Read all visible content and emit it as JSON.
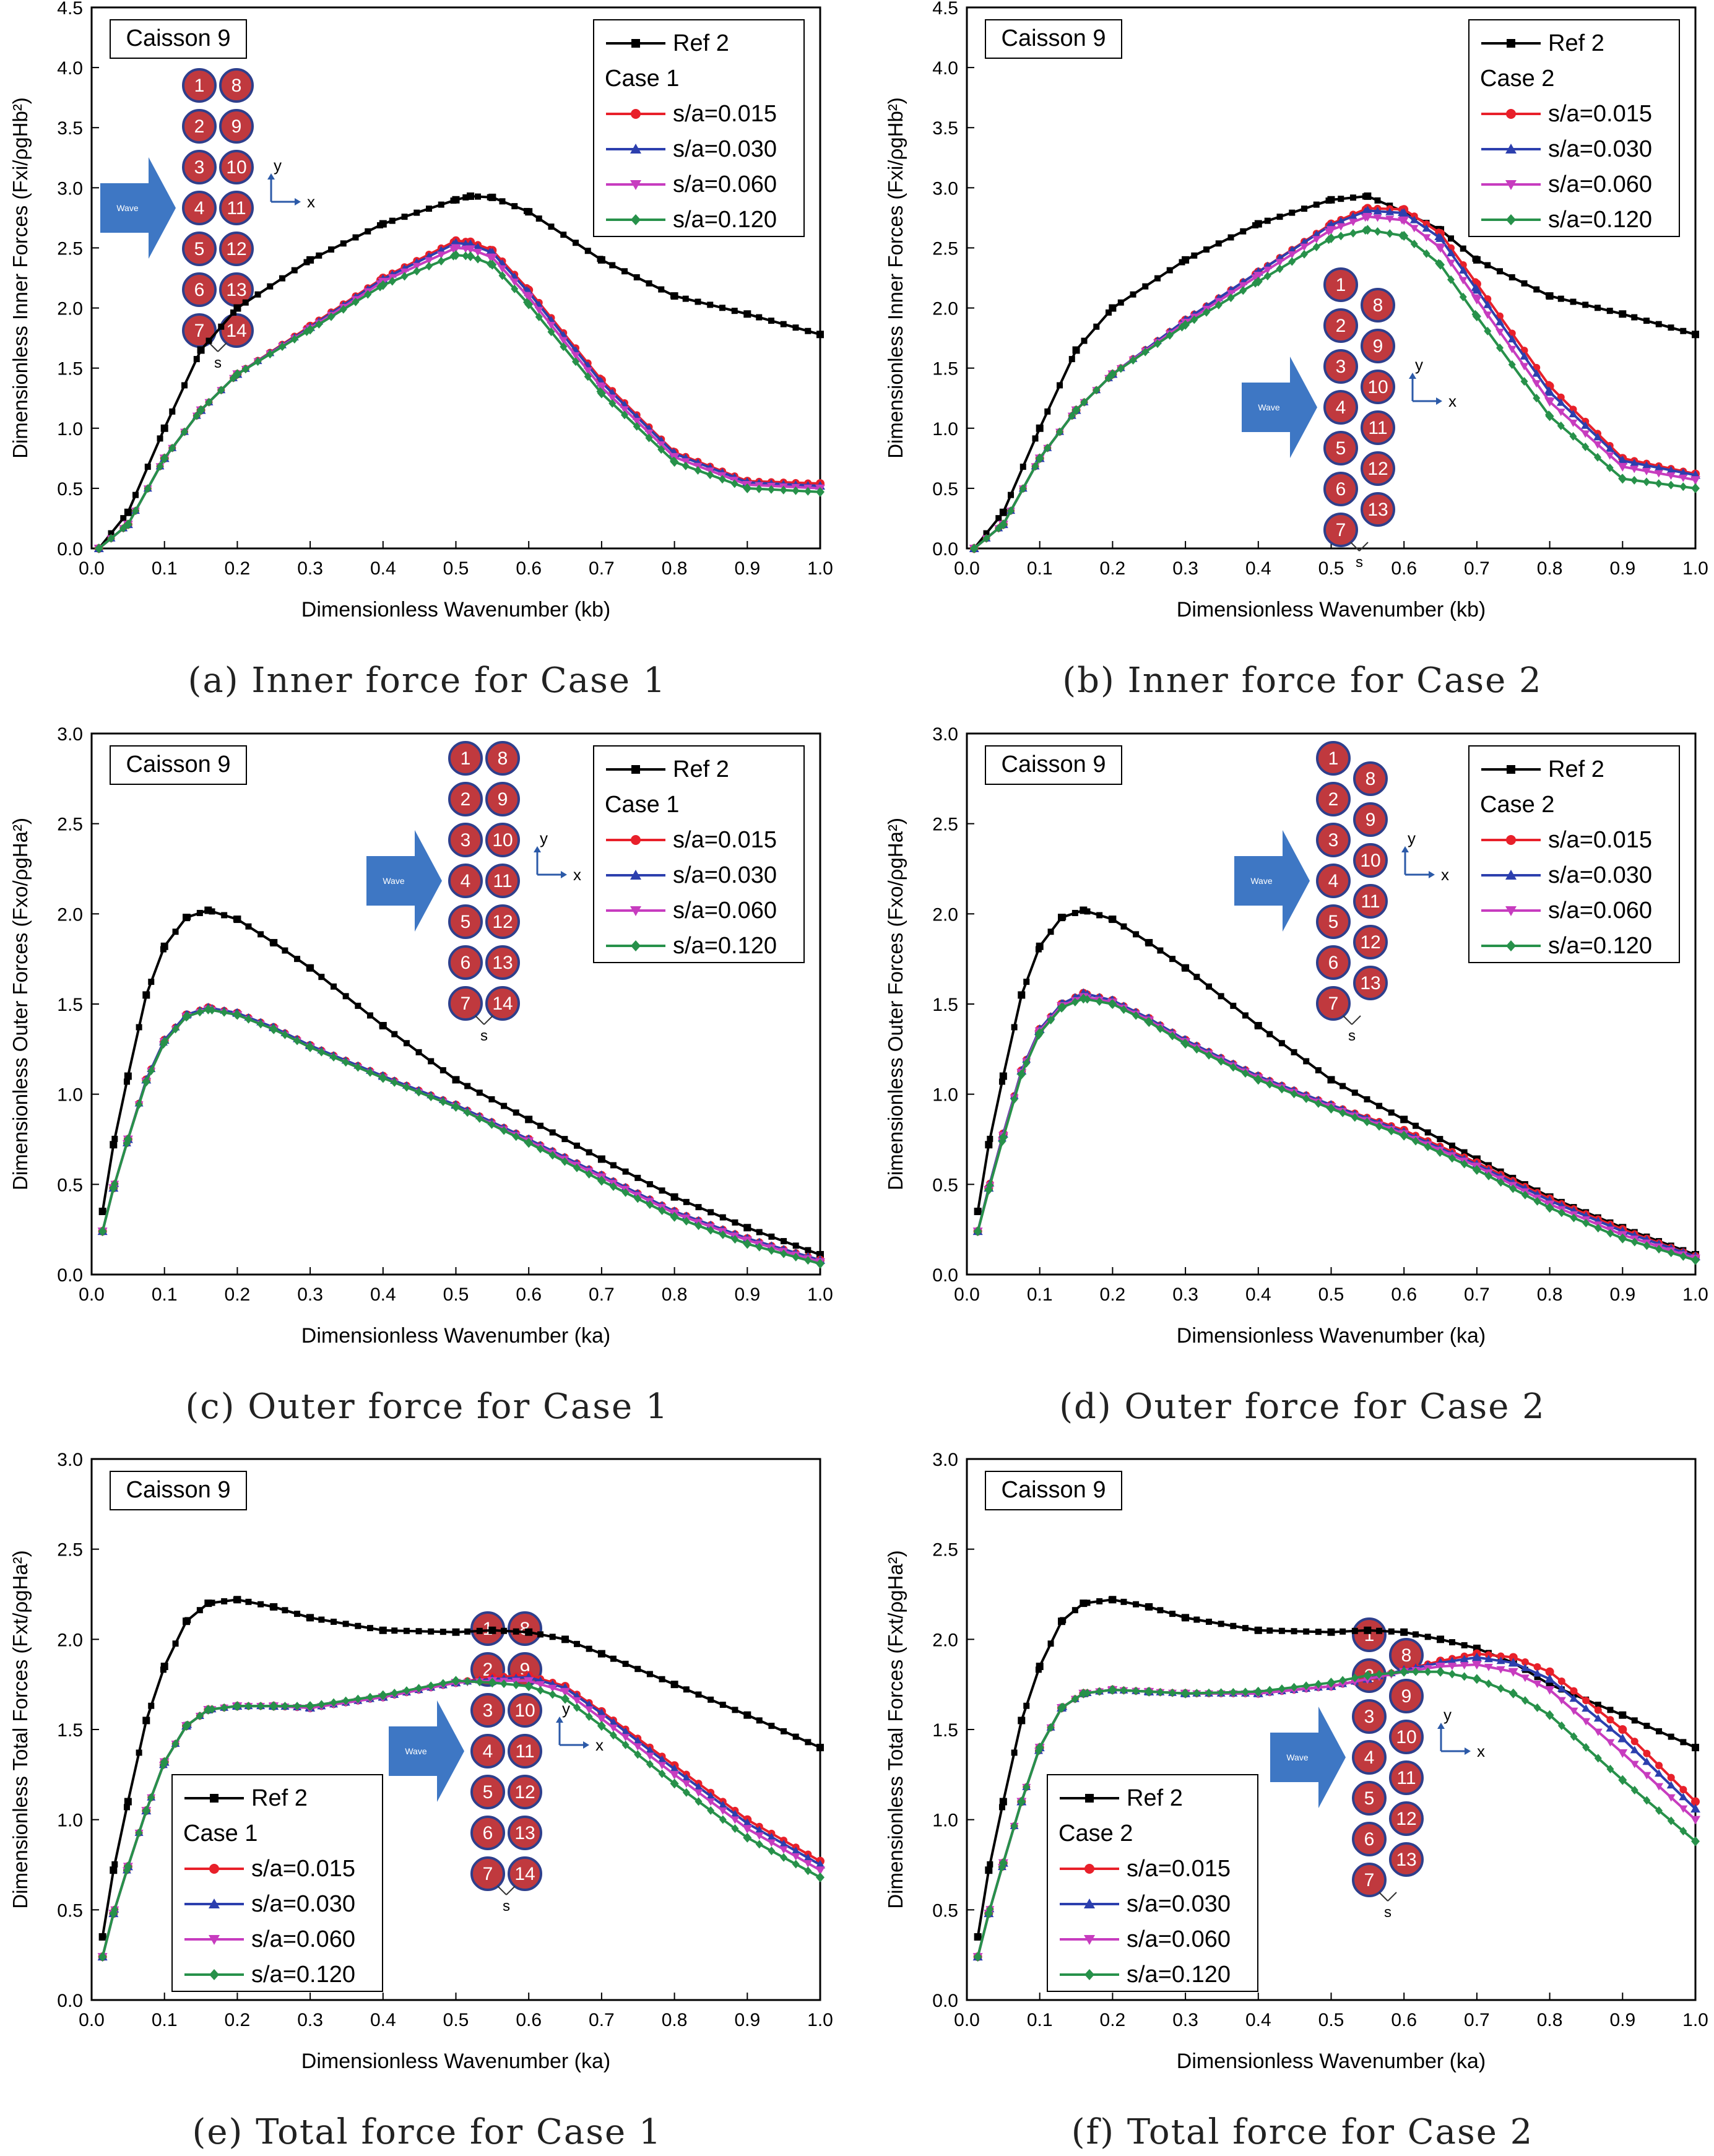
{
  "figure": {
    "series_colors": {
      "Ref 2": "#000000",
      "s/a=0.015": "#e8202a",
      "s/a=0.030": "#2c3fae",
      "s/a=0.060": "#c73cbf",
      "s/a=0.120": "#27914a"
    },
    "circle_fill": "#c0393e",
    "arrow_fill": "#3e77c4",
    "wave_label": "Wave",
    "axis_x_label": "x",
    "axis_y_label": "y",
    "gap_label": "s"
  },
  "chart_data": [
    {
      "id": "a",
      "type": "line",
      "caption": "(a) Inner force for Case 1",
      "title": "Caisson 9",
      "xlabel": "Dimensionless Wavenumber (kb)",
      "ylabel": "Dimensionless Inner Forces (Fxi/ρgHb²)",
      "xlim": [
        0,
        1.0
      ],
      "ylim": [
        0,
        4.5
      ],
      "xticks": [
        0.0,
        0.1,
        0.2,
        0.3,
        0.4,
        0.5,
        0.6,
        0.7,
        0.8,
        0.9,
        1.0
      ],
      "yticks": [
        0.0,
        0.5,
        1.0,
        1.5,
        2.0,
        2.5,
        3.0,
        3.5,
        4.0,
        4.5
      ],
      "legend_position": "top-right",
      "legend_group": "Case 1",
      "inset": "case1",
      "x": [
        0.01,
        0.05,
        0.1,
        0.15,
        0.2,
        0.3,
        0.4,
        0.5,
        0.52,
        0.55,
        0.6,
        0.7,
        0.8,
        0.9,
        1.0
      ],
      "series": [
        {
          "name": "Ref 2",
          "values": [
            0.0,
            0.3,
            1.0,
            1.65,
            2.0,
            2.4,
            2.7,
            2.9,
            2.93,
            2.92,
            2.8,
            2.4,
            2.1,
            1.95,
            1.78
          ]
        },
        {
          "name": "s/a=0.015",
          "values": [
            0.0,
            0.2,
            0.75,
            1.15,
            1.45,
            1.85,
            2.25,
            2.56,
            2.55,
            2.48,
            2.15,
            1.4,
            0.8,
            0.56,
            0.54
          ]
        },
        {
          "name": "s/a=0.030",
          "values": [
            0.0,
            0.2,
            0.75,
            1.15,
            1.45,
            1.84,
            2.24,
            2.54,
            2.53,
            2.46,
            2.13,
            1.38,
            0.79,
            0.55,
            0.52
          ]
        },
        {
          "name": "s/a=0.060",
          "values": [
            0.0,
            0.2,
            0.75,
            1.15,
            1.45,
            1.83,
            2.22,
            2.5,
            2.49,
            2.42,
            2.09,
            1.34,
            0.76,
            0.53,
            0.5
          ]
        },
        {
          "name": "s/a=0.120",
          "values": [
            0.0,
            0.2,
            0.75,
            1.15,
            1.45,
            1.82,
            2.19,
            2.44,
            2.43,
            2.36,
            2.03,
            1.29,
            0.72,
            0.5,
            0.47
          ]
        }
      ]
    },
    {
      "id": "b",
      "type": "line",
      "caption": "(b) Inner force for Case 2",
      "title": "Caisson 9",
      "xlabel": "Dimensionless Wavenumber (kb)",
      "ylabel": "Dimensionless Inner Forces (Fxi/ρgHb²)",
      "xlim": [
        0,
        1.0
      ],
      "ylim": [
        0,
        4.5
      ],
      "xticks": [
        0.0,
        0.1,
        0.2,
        0.3,
        0.4,
        0.5,
        0.6,
        0.7,
        0.8,
        0.9,
        1.0
      ],
      "yticks": [
        0.0,
        0.5,
        1.0,
        1.5,
        2.0,
        2.5,
        3.0,
        3.5,
        4.0,
        4.5
      ],
      "legend_position": "top-right",
      "legend_group": "Case 2",
      "inset": "case2",
      "x": [
        0.01,
        0.05,
        0.1,
        0.15,
        0.2,
        0.3,
        0.4,
        0.5,
        0.55,
        0.6,
        0.65,
        0.7,
        0.8,
        0.9,
        1.0
      ],
      "series": [
        {
          "name": "Ref 2",
          "values": [
            0.0,
            0.3,
            1.0,
            1.65,
            2.0,
            2.4,
            2.7,
            2.9,
            2.93,
            2.8,
            2.65,
            2.4,
            2.1,
            1.95,
            1.78
          ]
        },
        {
          "name": "s/a=0.015",
          "values": [
            0.0,
            0.2,
            0.75,
            1.15,
            1.45,
            1.9,
            2.3,
            2.7,
            2.83,
            2.82,
            2.62,
            2.2,
            1.35,
            0.75,
            0.62
          ]
        },
        {
          "name": "s/a=0.030",
          "values": [
            0.0,
            0.2,
            0.75,
            1.15,
            1.45,
            1.9,
            2.3,
            2.69,
            2.81,
            2.79,
            2.58,
            2.15,
            1.3,
            0.73,
            0.61
          ]
        },
        {
          "name": "s/a=0.060",
          "values": [
            0.0,
            0.2,
            0.75,
            1.15,
            1.45,
            1.88,
            2.27,
            2.65,
            2.76,
            2.73,
            2.5,
            2.07,
            1.22,
            0.68,
            0.57
          ]
        },
        {
          "name": "s/a=0.120",
          "values": [
            0.0,
            0.2,
            0.75,
            1.15,
            1.45,
            1.86,
            2.22,
            2.58,
            2.65,
            2.6,
            2.36,
            1.93,
            1.1,
            0.58,
            0.5
          ]
        }
      ]
    },
    {
      "id": "c",
      "type": "line",
      "caption": "(c) Outer force for Case 1",
      "title": "Caisson 9",
      "xlabel": "Dimensionless Wavenumber (ka)",
      "ylabel": "Dimensionless Outer Forces (Fxo/ρgHa²)",
      "xlim": [
        0,
        1.0
      ],
      "ylim": [
        0,
        3.0
      ],
      "xticks": [
        0.0,
        0.1,
        0.2,
        0.3,
        0.4,
        0.5,
        0.6,
        0.7,
        0.8,
        0.9,
        1.0
      ],
      "yticks": [
        0.0,
        0.5,
        1.0,
        1.5,
        2.0,
        2.5,
        3.0
      ],
      "legend_position": "top-right",
      "legend_group": "Case 1",
      "inset": "case1",
      "x": [
        0.015,
        0.03,
        0.05,
        0.075,
        0.1,
        0.13,
        0.16,
        0.2,
        0.25,
        0.3,
        0.4,
        0.5,
        0.6,
        0.7,
        0.8,
        0.9,
        1.0
      ],
      "series": [
        {
          "name": "Ref 2",
          "values": [
            0.35,
            0.72,
            1.1,
            1.55,
            1.82,
            1.98,
            2.02,
            1.97,
            1.84,
            1.7,
            1.38,
            1.08,
            0.86,
            0.64,
            0.43,
            0.26,
            0.11
          ]
        },
        {
          "name": "s/a=0.015",
          "values": [
            0.24,
            0.48,
            0.75,
            1.08,
            1.3,
            1.44,
            1.48,
            1.45,
            1.37,
            1.27,
            1.1,
            0.94,
            0.75,
            0.55,
            0.35,
            0.2,
            0.08
          ]
        },
        {
          "name": "s/a=0.030",
          "values": [
            0.24,
            0.48,
            0.75,
            1.08,
            1.3,
            1.44,
            1.48,
            1.45,
            1.37,
            1.27,
            1.1,
            0.94,
            0.75,
            0.55,
            0.35,
            0.2,
            0.08
          ]
        },
        {
          "name": "s/a=0.060",
          "values": [
            0.24,
            0.48,
            0.75,
            1.07,
            1.29,
            1.43,
            1.47,
            1.44,
            1.36,
            1.26,
            1.09,
            0.93,
            0.74,
            0.54,
            0.34,
            0.19,
            0.07
          ]
        },
        {
          "name": "s/a=0.120",
          "values": [
            0.24,
            0.48,
            0.75,
            1.07,
            1.29,
            1.43,
            1.47,
            1.44,
            1.36,
            1.26,
            1.09,
            0.93,
            0.73,
            0.52,
            0.32,
            0.17,
            0.06
          ]
        }
      ]
    },
    {
      "id": "d",
      "type": "line",
      "caption": "(d) Outer force for Case 2",
      "title": "Caisson 9",
      "xlabel": "Dimensionless Wavenumber (ka)",
      "ylabel": "Dimensionless Outer Forces (Fxo/ρgHa²)",
      "xlim": [
        0,
        1.0
      ],
      "ylim": [
        0,
        3.0
      ],
      "xticks": [
        0.0,
        0.1,
        0.2,
        0.3,
        0.4,
        0.5,
        0.6,
        0.7,
        0.8,
        0.9,
        1.0
      ],
      "yticks": [
        0.0,
        0.5,
        1.0,
        1.5,
        2.0,
        2.5,
        3.0
      ],
      "legend_position": "top-right",
      "legend_group": "Case 2",
      "inset": "case2",
      "x": [
        0.015,
        0.03,
        0.05,
        0.075,
        0.1,
        0.13,
        0.16,
        0.2,
        0.25,
        0.3,
        0.4,
        0.5,
        0.6,
        0.7,
        0.8,
        0.9,
        1.0
      ],
      "series": [
        {
          "name": "Ref 2",
          "values": [
            0.35,
            0.72,
            1.1,
            1.55,
            1.82,
            1.98,
            2.02,
            1.97,
            1.84,
            1.7,
            1.38,
            1.08,
            0.86,
            0.64,
            0.43,
            0.26,
            0.11
          ]
        },
        {
          "name": "s/a=0.015",
          "values": [
            0.24,
            0.48,
            0.78,
            1.13,
            1.36,
            1.5,
            1.56,
            1.52,
            1.42,
            1.3,
            1.1,
            0.94,
            0.8,
            0.62,
            0.42,
            0.25,
            0.1
          ]
        },
        {
          "name": "s/a=0.030",
          "values": [
            0.24,
            0.48,
            0.78,
            1.13,
            1.36,
            1.5,
            1.56,
            1.52,
            1.42,
            1.3,
            1.1,
            0.94,
            0.79,
            0.61,
            0.41,
            0.24,
            0.1
          ]
        },
        {
          "name": "s/a=0.060",
          "values": [
            0.24,
            0.47,
            0.77,
            1.12,
            1.35,
            1.49,
            1.54,
            1.51,
            1.41,
            1.29,
            1.09,
            0.93,
            0.78,
            0.6,
            0.39,
            0.22,
            0.09
          ]
        },
        {
          "name": "s/a=0.120",
          "values": [
            0.24,
            0.47,
            0.76,
            1.11,
            1.34,
            1.48,
            1.53,
            1.5,
            1.4,
            1.28,
            1.08,
            0.92,
            0.77,
            0.58,
            0.37,
            0.2,
            0.08
          ]
        }
      ]
    },
    {
      "id": "e",
      "type": "line",
      "caption": "(e) Total force for Case 1",
      "title": "Caisson 9",
      "xlabel": "Dimensionless Wavenumber (ka)",
      "ylabel": "Dimensionless Total Forces (Fxt/ρgHa²)",
      "xlim": [
        0,
        1.0
      ],
      "ylim": [
        0,
        3.0
      ],
      "xticks": [
        0.0,
        0.1,
        0.2,
        0.3,
        0.4,
        0.5,
        0.6,
        0.7,
        0.8,
        0.9,
        1.0
      ],
      "yticks": [
        0.0,
        0.5,
        1.0,
        1.5,
        2.0,
        2.5,
        3.0
      ],
      "legend_position": "bottom-left",
      "legend_group": "Case 1",
      "inset": "case1",
      "x": [
        0.015,
        0.03,
        0.05,
        0.075,
        0.1,
        0.13,
        0.16,
        0.2,
        0.25,
        0.3,
        0.4,
        0.5,
        0.55,
        0.6,
        0.65,
        0.7,
        0.8,
        0.9,
        1.0
      ],
      "series": [
        {
          "name": "Ref 2",
          "values": [
            0.35,
            0.72,
            1.1,
            1.55,
            1.85,
            2.1,
            2.2,
            2.22,
            2.18,
            2.12,
            2.05,
            2.04,
            2.05,
            2.04,
            2.0,
            1.92,
            1.75,
            1.58,
            1.4
          ]
        },
        {
          "name": "s/a=0.015",
          "values": [
            0.24,
            0.48,
            0.74,
            1.05,
            1.32,
            1.52,
            1.61,
            1.63,
            1.63,
            1.62,
            1.68,
            1.76,
            1.79,
            1.8,
            1.74,
            1.6,
            1.3,
            1.0,
            0.77
          ]
        },
        {
          "name": "s/a=0.030",
          "values": [
            0.24,
            0.48,
            0.74,
            1.05,
            1.32,
            1.52,
            1.61,
            1.63,
            1.63,
            1.62,
            1.68,
            1.76,
            1.78,
            1.79,
            1.73,
            1.59,
            1.28,
            0.98,
            0.75
          ]
        },
        {
          "name": "s/a=0.060",
          "values": [
            0.24,
            0.48,
            0.74,
            1.05,
            1.32,
            1.52,
            1.61,
            1.63,
            1.63,
            1.62,
            1.68,
            1.76,
            1.77,
            1.77,
            1.71,
            1.56,
            1.25,
            0.95,
            0.72
          ]
        },
        {
          "name": "s/a=0.120",
          "values": [
            0.24,
            0.48,
            0.74,
            1.05,
            1.32,
            1.52,
            1.61,
            1.63,
            1.63,
            1.63,
            1.69,
            1.77,
            1.76,
            1.74,
            1.67,
            1.52,
            1.2,
            0.9,
            0.68
          ]
        }
      ]
    },
    {
      "id": "f",
      "type": "line",
      "caption": "(f) Total force for Case 2",
      "title": "Caisson 9",
      "xlabel": "Dimensionless Wavenumber (ka)",
      "ylabel": "Dimensionless Total Forces (Fxt/ρgHa²)",
      "xlim": [
        0,
        1.0
      ],
      "ylim": [
        0,
        3.0
      ],
      "xticks": [
        0.0,
        0.1,
        0.2,
        0.3,
        0.4,
        0.5,
        0.6,
        0.7,
        0.8,
        0.9,
        1.0
      ],
      "yticks": [
        0.0,
        0.5,
        1.0,
        1.5,
        2.0,
        2.5,
        3.0
      ],
      "legend_position": "bottom-left",
      "legend_group": "Case 2",
      "inset": "case2",
      "x": [
        0.015,
        0.03,
        0.05,
        0.075,
        0.1,
        0.13,
        0.16,
        0.2,
        0.25,
        0.3,
        0.4,
        0.5,
        0.55,
        0.6,
        0.65,
        0.7,
        0.75,
        0.8,
        0.9,
        1.0
      ],
      "series": [
        {
          "name": "Ref 2",
          "values": [
            0.35,
            0.72,
            1.1,
            1.55,
            1.85,
            2.1,
            2.2,
            2.22,
            2.18,
            2.12,
            2.05,
            2.04,
            2.05,
            2.04,
            2.0,
            1.95,
            1.87,
            1.75,
            1.58,
            1.4
          ]
        },
        {
          "name": "s/a=0.015",
          "values": [
            0.24,
            0.48,
            0.76,
            1.1,
            1.4,
            1.62,
            1.7,
            1.72,
            1.71,
            1.7,
            1.7,
            1.74,
            1.78,
            1.83,
            1.88,
            1.92,
            1.9,
            1.82,
            1.5,
            1.1
          ]
        },
        {
          "name": "s/a=0.030",
          "values": [
            0.24,
            0.48,
            0.76,
            1.1,
            1.4,
            1.62,
            1.7,
            1.72,
            1.71,
            1.7,
            1.7,
            1.74,
            1.78,
            1.83,
            1.87,
            1.9,
            1.87,
            1.78,
            1.45,
            1.06
          ]
        },
        {
          "name": "s/a=0.060",
          "values": [
            0.24,
            0.48,
            0.76,
            1.1,
            1.4,
            1.62,
            1.7,
            1.72,
            1.71,
            1.7,
            1.7,
            1.74,
            1.78,
            1.82,
            1.85,
            1.86,
            1.82,
            1.72,
            1.37,
            1.0
          ]
        },
        {
          "name": "s/a=0.120",
          "values": [
            0.24,
            0.48,
            0.76,
            1.1,
            1.4,
            1.62,
            1.7,
            1.72,
            1.71,
            1.7,
            1.71,
            1.76,
            1.8,
            1.82,
            1.82,
            1.78,
            1.7,
            1.58,
            1.22,
            0.88
          ]
        }
      ]
    }
  ]
}
